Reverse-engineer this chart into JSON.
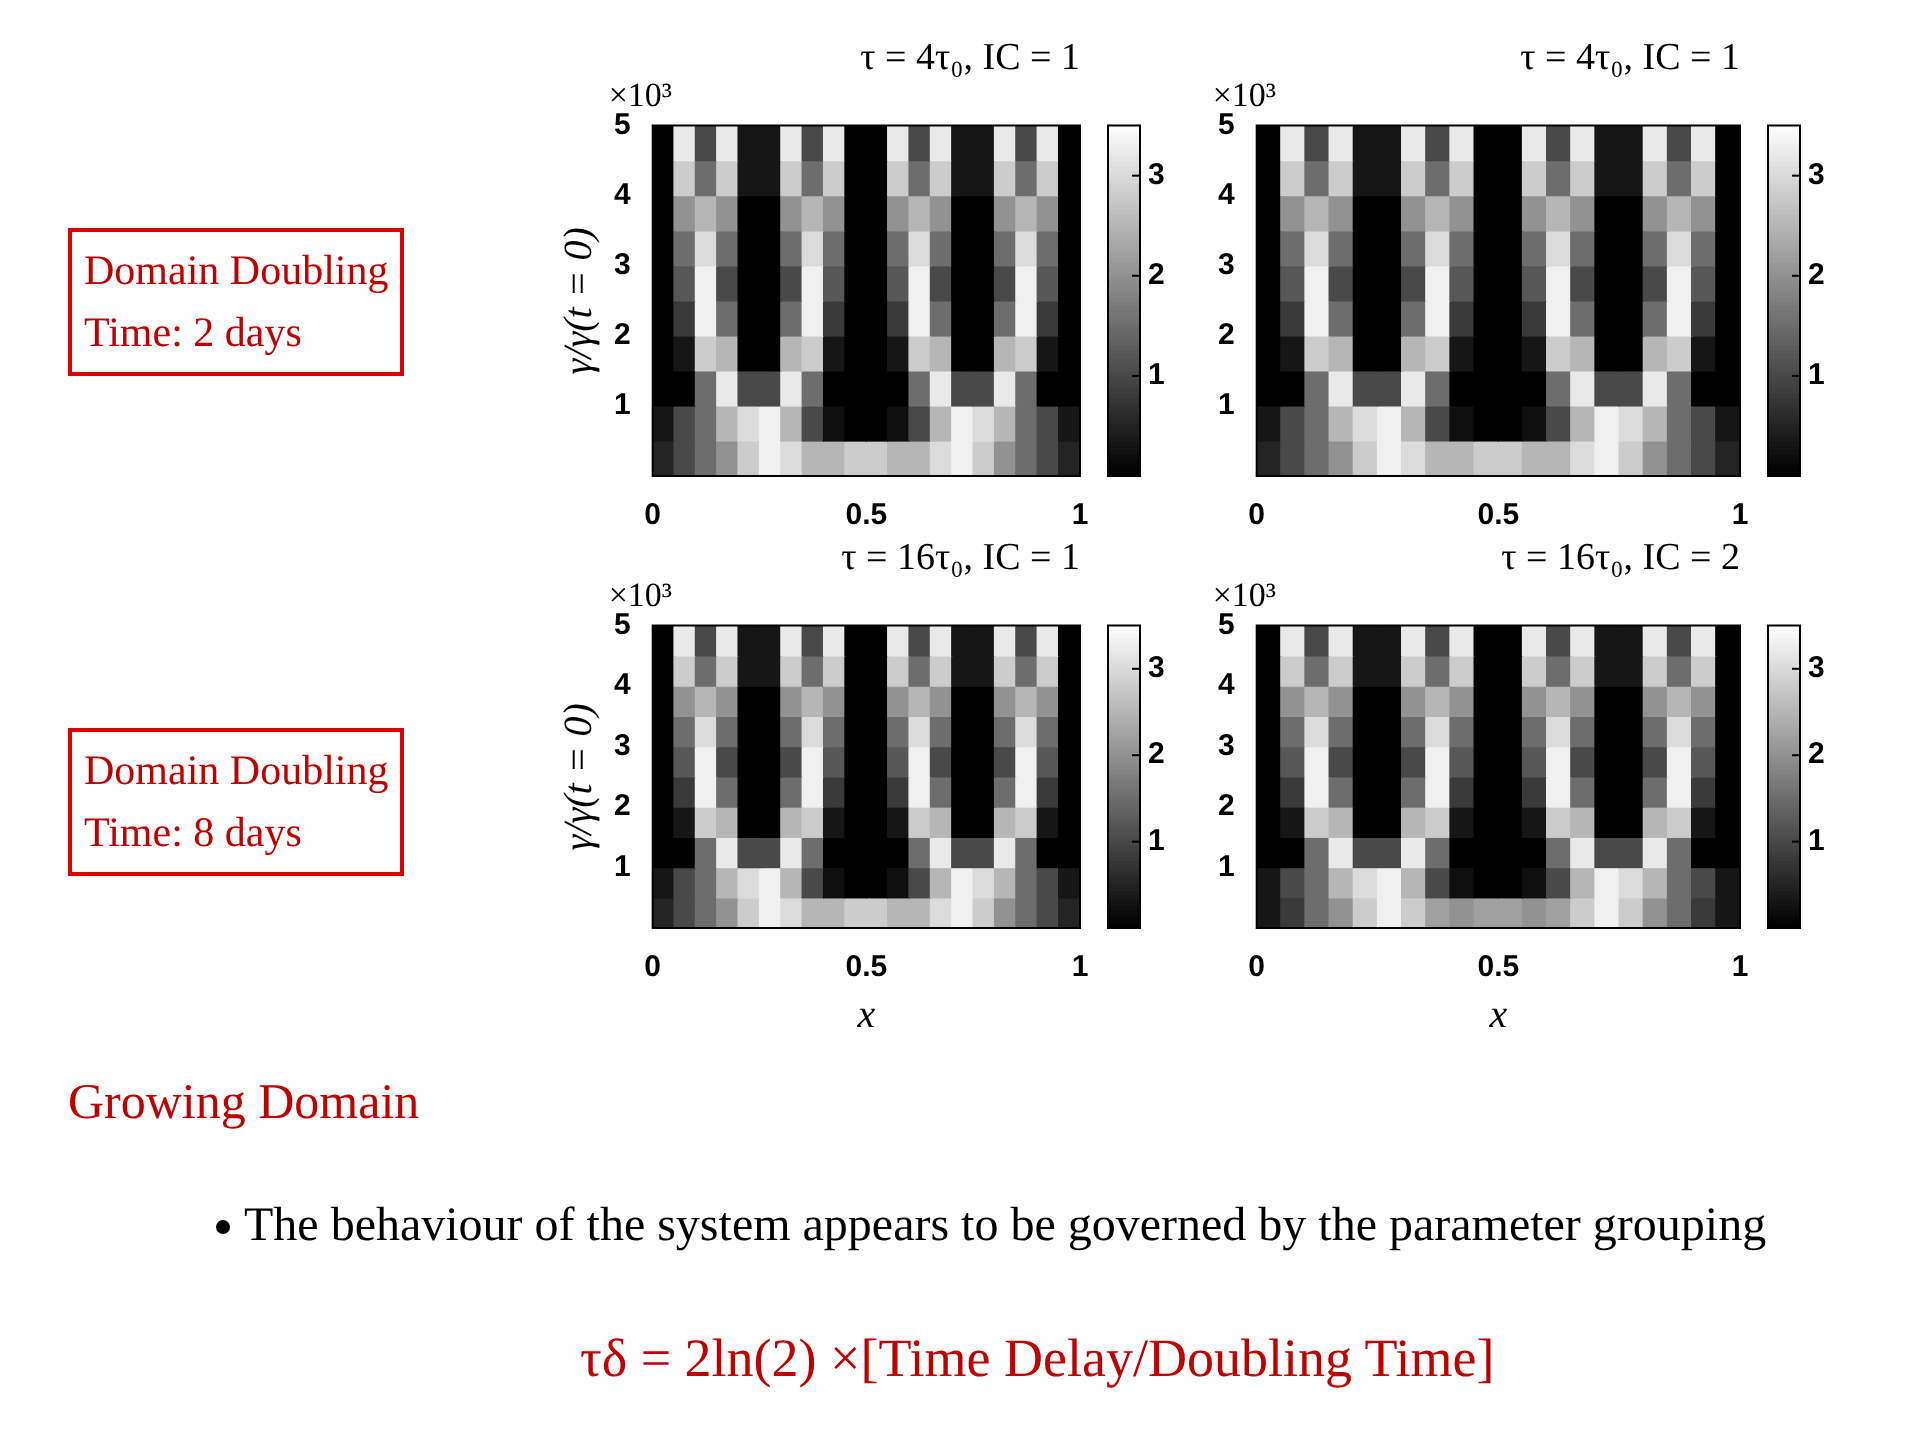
{
  "chart_data": [
    {
      "type": "heatmap",
      "title": "τ = 4τ₀, IC = 1",
      "ylabel": "γ/γ(t = 0)",
      "annotations": [
        "×10³",
        "Domain Doubling\nTime: 2 days"
      ],
      "x": [
        0.025,
        0.075,
        0.125,
        0.175,
        0.225,
        0.275,
        0.325,
        0.375,
        0.425,
        0.475,
        0.525,
        0.575,
        0.625,
        0.675,
        0.725,
        0.775,
        0.825,
        0.875,
        0.925,
        0.975
      ],
      "xlim": [
        0,
        1
      ],
      "xticks": [
        0,
        0.5,
        1
      ],
      "ylim": [
        0,
        5
      ],
      "yticks": [
        1,
        2,
        3,
        4,
        5
      ],
      "clim": [
        0,
        3.5
      ],
      "cticks": [
        1,
        2,
        3
      ],
      "cells": [
        [
          0,
          3.2,
          1,
          3.2,
          0.3,
          0.3,
          3.2,
          1,
          3.2,
          0,
          0,
          3.2,
          1,
          3.2,
          0.3,
          0.3,
          3.2,
          1,
          3.2,
          0
        ],
        [
          0,
          2.8,
          1.5,
          2.8,
          0.3,
          0.3,
          2.8,
          1.5,
          2.8,
          0,
          0,
          2.8,
          1.5,
          2.8,
          0.3,
          0.3,
          2.8,
          1.5,
          2.8,
          0
        ],
        [
          0,
          2,
          2.5,
          2,
          0,
          0,
          2,
          2.5,
          2,
          0,
          0,
          2,
          2.5,
          2,
          0,
          0,
          2,
          2.5,
          2,
          0
        ],
        [
          0,
          1.5,
          3,
          1.5,
          0,
          0,
          1.5,
          3,
          1.5,
          0,
          0,
          1.5,
          3,
          1.5,
          0,
          0,
          1.5,
          3,
          1.5,
          0
        ],
        [
          0,
          1.2,
          3.3,
          1,
          0,
          0,
          1,
          3.3,
          1.2,
          0,
          0,
          1.2,
          3.3,
          1,
          0,
          0,
          1,
          3.3,
          1.2,
          0
        ],
        [
          0,
          0.8,
          3.3,
          1.5,
          0,
          0,
          1.5,
          3.3,
          0.8,
          0,
          0,
          0.8,
          3.3,
          1.5,
          0,
          0,
          1.5,
          3.3,
          0.8,
          0
        ],
        [
          0,
          0.3,
          2.8,
          2.5,
          0,
          0,
          2.5,
          2.8,
          0.3,
          0,
          0,
          0.3,
          2.8,
          2.5,
          0,
          0,
          2.5,
          2.8,
          0.3,
          0
        ],
        [
          0,
          0,
          1.5,
          3.2,
          1,
          1,
          3.2,
          1.5,
          0,
          0,
          0,
          0,
          1.5,
          3.2,
          1,
          1,
          3.2,
          1.5,
          0,
          0
        ],
        [
          0.3,
          1,
          1.5,
          2.5,
          3,
          3.3,
          2.5,
          1,
          0.2,
          0,
          0,
          0.2,
          1,
          2.5,
          3.3,
          3,
          2.5,
          1.5,
          1,
          0.3
        ],
        [
          0.5,
          1,
          1.5,
          2,
          2.8,
          3.3,
          3,
          2.5,
          2.5,
          2.8,
          2.8,
          2.5,
          2.5,
          3,
          3.3,
          2.8,
          2,
          1.5,
          1,
          0.5
        ]
      ]
    },
    {
      "type": "heatmap",
      "title": "τ = 4τ₀, IC = 1",
      "annotations": [
        "×10³"
      ],
      "x": [
        0.025,
        0.075,
        0.125,
        0.175,
        0.225,
        0.275,
        0.325,
        0.375,
        0.425,
        0.475,
        0.525,
        0.575,
        0.625,
        0.675,
        0.725,
        0.775,
        0.825,
        0.875,
        0.925,
        0.975
      ],
      "xlim": [
        0,
        1
      ],
      "xticks": [
        0,
        0.5,
        1
      ],
      "ylim": [
        0,
        5
      ],
      "yticks": [
        1,
        2,
        3,
        4,
        5
      ],
      "clim": [
        0,
        3.5
      ],
      "cticks": [
        1,
        2,
        3
      ],
      "cells": [
        [
          0,
          3.2,
          1,
          3.2,
          0.3,
          0.3,
          3.2,
          1,
          3.2,
          0,
          0,
          3.2,
          1,
          3.2,
          0.3,
          0.3,
          3.2,
          1,
          3.2,
          0
        ],
        [
          0,
          2.8,
          1.5,
          2.8,
          0.3,
          0.3,
          2.8,
          1.5,
          2.8,
          0,
          0,
          2.8,
          1.5,
          2.8,
          0.3,
          0.3,
          2.8,
          1.5,
          2.8,
          0
        ],
        [
          0,
          2,
          2.5,
          2,
          0,
          0,
          2,
          2.5,
          2,
          0,
          0,
          2,
          2.5,
          2,
          0,
          0,
          2,
          2.5,
          2,
          0
        ],
        [
          0,
          1.5,
          3,
          1.5,
          0,
          0,
          1.5,
          3,
          1.5,
          0,
          0,
          1.5,
          3,
          1.5,
          0,
          0,
          1.5,
          3,
          1.5,
          0
        ],
        [
          0,
          1.2,
          3.3,
          1,
          0,
          0,
          1,
          3.3,
          1.2,
          0,
          0,
          1.2,
          3.3,
          1,
          0,
          0,
          1,
          3.3,
          1.2,
          0
        ],
        [
          0,
          0.8,
          3.3,
          1.5,
          0,
          0,
          1.5,
          3.3,
          0.8,
          0,
          0,
          0.8,
          3.3,
          1.5,
          0,
          0,
          1.5,
          3.3,
          0.8,
          0
        ],
        [
          0,
          0.3,
          2.8,
          2.5,
          0,
          0,
          2.5,
          2.8,
          0.3,
          0,
          0,
          0.3,
          2.8,
          2.5,
          0,
          0,
          2.5,
          2.8,
          0.3,
          0
        ],
        [
          0,
          0,
          1.5,
          3.2,
          1,
          1,
          3.2,
          1.5,
          0,
          0,
          0,
          0,
          1.5,
          3.2,
          1,
          1,
          3.2,
          1.5,
          0,
          0
        ],
        [
          0.3,
          1,
          1.5,
          2.5,
          3,
          3.3,
          2.5,
          1,
          0.2,
          0,
          0,
          0.2,
          1,
          2.5,
          3.3,
          3,
          2.5,
          1.5,
          1,
          0.3
        ],
        [
          0.5,
          1,
          1.5,
          2,
          2.8,
          3.3,
          3,
          2.5,
          2.5,
          2.8,
          2.8,
          2.5,
          2.5,
          3,
          3.3,
          2.8,
          2,
          1.5,
          1,
          0.5
        ]
      ]
    },
    {
      "type": "heatmap",
      "title": "τ = 16τ₀, IC = 1",
      "xlabel": "x",
      "ylabel": "γ/γ(t = 0)",
      "annotations": [
        "×10³",
        "Domain Doubling\nTime: 8 days"
      ],
      "x": [
        0.025,
        0.075,
        0.125,
        0.175,
        0.225,
        0.275,
        0.325,
        0.375,
        0.425,
        0.475,
        0.525,
        0.575,
        0.625,
        0.675,
        0.725,
        0.775,
        0.825,
        0.875,
        0.925,
        0.975
      ],
      "xlim": [
        0,
        1
      ],
      "xticks": [
        0,
        0.5,
        1
      ],
      "ylim": [
        0,
        5
      ],
      "yticks": [
        1,
        2,
        3,
        4,
        5
      ],
      "clim": [
        0,
        3.5
      ],
      "cticks": [
        1,
        2,
        3
      ],
      "cells": [
        [
          0,
          3.2,
          1,
          3.2,
          0.3,
          0.3,
          3.2,
          1,
          3.2,
          0,
          0,
          3.2,
          1,
          3.2,
          0.3,
          0.3,
          3.2,
          1,
          3.2,
          0
        ],
        [
          0,
          2.8,
          1.5,
          2.8,
          0.3,
          0.3,
          2.8,
          1.5,
          2.8,
          0,
          0,
          2.8,
          1.5,
          2.8,
          0.3,
          0.3,
          2.8,
          1.5,
          2.8,
          0
        ],
        [
          0,
          2,
          2.5,
          2,
          0,
          0,
          2,
          2.5,
          2,
          0,
          0,
          2,
          2.5,
          2,
          0,
          0,
          2,
          2.5,
          2,
          0
        ],
        [
          0,
          1.5,
          3,
          1.5,
          0,
          0,
          1.5,
          3,
          1.5,
          0,
          0,
          1.5,
          3,
          1.5,
          0,
          0,
          1.5,
          3,
          1.5,
          0
        ],
        [
          0,
          1.2,
          3.3,
          1,
          0,
          0,
          1,
          3.3,
          1.2,
          0,
          0,
          1.2,
          3.3,
          1,
          0,
          0,
          1,
          3.3,
          1.2,
          0
        ],
        [
          0,
          0.8,
          3.3,
          1.5,
          0,
          0,
          1.5,
          3.3,
          0.8,
          0,
          0,
          0.8,
          3.3,
          1.5,
          0,
          0,
          1.5,
          3.3,
          0.8,
          0
        ],
        [
          0,
          0.3,
          2.8,
          2.5,
          0,
          0,
          2.5,
          2.8,
          0.3,
          0,
          0,
          0.3,
          2.8,
          2.5,
          0,
          0,
          2.5,
          2.8,
          0.3,
          0
        ],
        [
          0,
          0,
          1.5,
          3.2,
          1,
          1,
          3.2,
          1.5,
          0,
          0,
          0,
          0,
          1.5,
          3.2,
          1,
          1,
          3.2,
          1.5,
          0,
          0
        ],
        [
          0.3,
          1,
          1.5,
          2.5,
          3,
          3.3,
          2.5,
          1,
          0.2,
          0,
          0,
          0.2,
          1,
          2.5,
          3.3,
          3,
          2.5,
          1.5,
          1,
          0.3
        ],
        [
          0.5,
          1,
          1.5,
          2,
          2.8,
          3.3,
          3,
          2.5,
          2.5,
          2.8,
          2.8,
          2.5,
          2.5,
          3,
          3.3,
          2.8,
          2,
          1.5,
          1,
          0.5
        ]
      ]
    },
    {
      "type": "heatmap",
      "title": "τ = 16τ₀, IC = 2",
      "xlabel": "x",
      "annotations": [
        "×10³"
      ],
      "x": [
        0.025,
        0.075,
        0.125,
        0.175,
        0.225,
        0.275,
        0.325,
        0.375,
        0.425,
        0.475,
        0.525,
        0.575,
        0.625,
        0.675,
        0.725,
        0.775,
        0.825,
        0.875,
        0.925,
        0.975
      ],
      "xlim": [
        0,
        1
      ],
      "xticks": [
        0,
        0.5,
        1
      ],
      "ylim": [
        0,
        5
      ],
      "yticks": [
        1,
        2,
        3,
        4,
        5
      ],
      "clim": [
        0,
        3.5
      ],
      "cticks": [
        1,
        2,
        3
      ],
      "cells": [
        [
          0,
          3.2,
          1,
          3.2,
          0.3,
          0.3,
          3.2,
          1,
          3.2,
          0,
          0,
          3.2,
          1,
          3.2,
          0.3,
          0.3,
          3.2,
          1,
          3.2,
          0
        ],
        [
          0,
          2.8,
          1.5,
          2.8,
          0.3,
          0.3,
          2.8,
          1.5,
          2.8,
          0,
          0,
          2.8,
          1.5,
          2.8,
          0.3,
          0.3,
          2.8,
          1.5,
          2.8,
          0
        ],
        [
          0,
          2,
          2.5,
          2,
          0,
          0,
          2,
          2.5,
          2,
          0,
          0,
          2,
          2.5,
          2,
          0,
          0,
          2,
          2.5,
          2,
          0
        ],
        [
          0,
          1.5,
          3,
          1.5,
          0,
          0,
          1.5,
          3,
          1.5,
          0,
          0,
          1.5,
          3,
          1.5,
          0,
          0,
          1.5,
          3,
          1.5,
          0
        ],
        [
          0,
          1.2,
          3.3,
          1,
          0,
          0,
          1,
          3.3,
          1.2,
          0,
          0,
          1.2,
          3.3,
          1,
          0,
          0,
          1,
          3.3,
          1.2,
          0
        ],
        [
          0,
          0.8,
          3.3,
          1.5,
          0,
          0,
          1.5,
          3.3,
          0.8,
          0,
          0,
          0.8,
          3.3,
          1.5,
          0,
          0,
          1.5,
          3.3,
          0.8,
          0
        ],
        [
          0,
          0.3,
          2.8,
          2.5,
          0,
          0,
          2.5,
          2.8,
          0.3,
          0,
          0,
          0.3,
          2.8,
          2.5,
          0,
          0,
          2.5,
          2.8,
          0.3,
          0
        ],
        [
          0,
          0,
          1.5,
          3.2,
          1,
          1,
          3.2,
          1.5,
          0,
          0,
          0,
          0,
          1.5,
          3.2,
          1,
          1,
          3.2,
          1.5,
          0,
          0
        ],
        [
          0.3,
          1,
          1.5,
          2.5,
          3,
          3.3,
          2.5,
          1,
          0.2,
          0,
          0,
          0.2,
          1,
          2.5,
          3.3,
          3,
          2.5,
          1.5,
          1,
          0.3
        ],
        [
          0.3,
          0.8,
          1.5,
          2,
          2.8,
          3.3,
          2.8,
          2.2,
          2,
          2.2,
          2.2,
          2,
          2.2,
          2.8,
          3.3,
          2.8,
          2,
          1.5,
          0.8,
          0.3
        ]
      ]
    },
    {
      "type": "other",
      "annotations": [
        "Growing Domain",
        "The behaviour of the system appears to be governed by the parameter grouping",
        "τδ = 2ln(2) ×[Time Delay/Doubling Time]"
      ]
    }
  ]
}
